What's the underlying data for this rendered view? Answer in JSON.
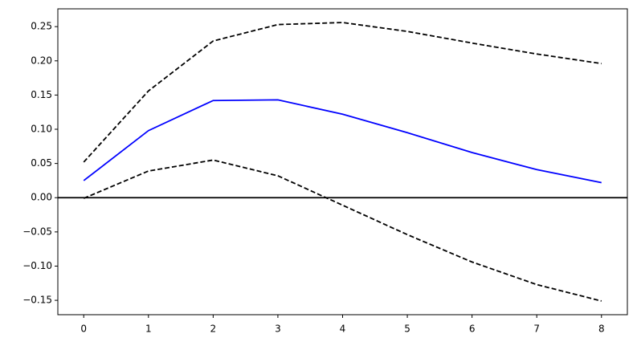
{
  "chart_data": {
    "type": "line",
    "x": [
      0,
      1,
      2,
      3,
      4,
      5,
      6,
      7,
      8
    ],
    "series": [
      {
        "color": "#0000ff",
        "style": "solid",
        "values": [
          0.025,
          0.098,
          0.142,
          0.143,
          0.122,
          0.095,
          0.066,
          0.041,
          0.022
        ]
      },
      {
        "color": "#000000",
        "style": "dashed",
        "values": [
          0.052,
          0.156,
          0.229,
          0.253,
          0.256,
          0.243,
          0.226,
          0.21,
          0.196
        ]
      },
      {
        "color": "#000000",
        "style": "dashed",
        "values": [
          -0.001,
          0.039,
          0.055,
          0.032,
          -0.011,
          -0.054,
          -0.094,
          -0.127,
          -0.151
        ]
      }
    ],
    "hlines": [
      0
    ],
    "xlim": [
      -0.4,
      8.4
    ],
    "ylim": [
      -0.171,
      0.276
    ],
    "xticks": [
      0,
      1,
      2,
      3,
      4,
      5,
      6,
      7,
      8
    ],
    "yticks": [
      {
        "value": -0.15,
        "label": "−0.15"
      },
      {
        "value": -0.1,
        "label": "−0.10"
      },
      {
        "value": -0.05,
        "label": "−0.05"
      },
      {
        "value": 0,
        "label": "0.00"
      },
      {
        "value": 0.05,
        "label": "0.05"
      },
      {
        "value": 0.1,
        "label": "0.10"
      },
      {
        "value": 0.15,
        "label": "0.15"
      },
      {
        "value": 0.2,
        "label": "0.20"
      },
      {
        "value": 0.25,
        "label": "0.25"
      }
    ],
    "grid": false
  }
}
